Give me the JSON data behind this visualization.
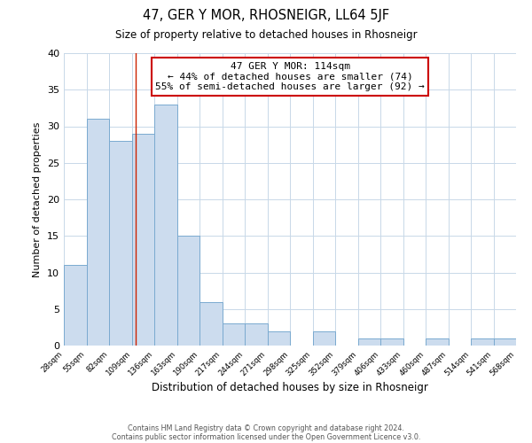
{
  "title": "47, GER Y MOR, RHOSNEIGR, LL64 5JF",
  "subtitle": "Size of property relative to detached houses in Rhosneigr",
  "xlabel": "Distribution of detached houses by size in Rhosneigr",
  "ylabel": "Number of detached properties",
  "bar_color": "#ccdcee",
  "bar_edge_color": "#7aaad0",
  "grid_color": "#c8d8e8",
  "annotation_box_color": "#ffffff",
  "annotation_box_edge": "#cc0000",
  "marker_line_color": "#cc2200",
  "marker_value": 114,
  "annotation_line1": "47 GER Y MOR: 114sqm",
  "annotation_line2": "← 44% of detached houses are smaller (74)",
  "annotation_line3": "55% of semi-detached houses are larger (92) →",
  "bin_edges": [
    28,
    55,
    82,
    109,
    136,
    163,
    190,
    217,
    244,
    271,
    298,
    325,
    352,
    379,
    406,
    433,
    460,
    487,
    514,
    541,
    568
  ],
  "counts": [
    11,
    31,
    28,
    29,
    33,
    15,
    6,
    3,
    3,
    2,
    0,
    2,
    0,
    1,
    1,
    0,
    1,
    0,
    1,
    1
  ],
  "ylim": [
    0,
    40
  ],
  "yticks": [
    0,
    5,
    10,
    15,
    20,
    25,
    30,
    35,
    40
  ],
  "footer_line1": "Contains HM Land Registry data © Crown copyright and database right 2024.",
  "footer_line2": "Contains public sector information licensed under the Open Government Licence v3.0.",
  "fig_bg_color": "#ffffff",
  "plot_bg_color": "#ffffff"
}
